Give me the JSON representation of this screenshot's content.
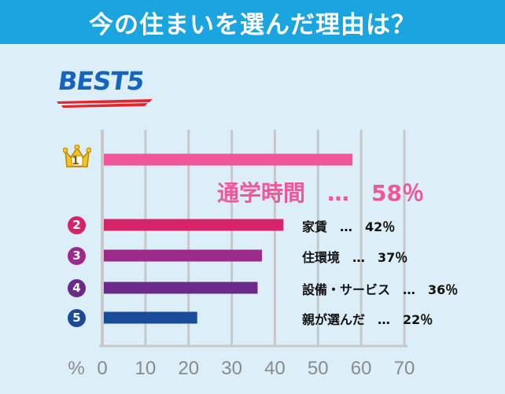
{
  "title": "今の住まいを選んだ理由は？",
  "badge": "BEST5",
  "colors": {
    "title_bar": "#1aa4e0",
    "background": "#dceef8",
    "rank1": "#f0569a",
    "rank2": "#d6246b",
    "rank3": "#9c2a8a",
    "rank4": "#6a2a8a",
    "rank5": "#1a4a9a"
  },
  "chart_data": {
    "type": "bar",
    "orientation": "horizontal",
    "categories": [
      "通学時間",
      "家賃",
      "住環境",
      "設備・サービス",
      "親が選んだ"
    ],
    "values": [
      58,
      42,
      37,
      36,
      22
    ],
    "ranks": [
      "1",
      "2",
      "3",
      "4",
      "5"
    ],
    "labels": [
      "通学時間　…　58％",
      "家賃　…　42％",
      "住環境　…　37％",
      "設備・サービス　…　36％",
      "親が選んだ　…　22％"
    ],
    "unit_label": "%",
    "xticks": [
      "0",
      "10",
      "20",
      "30",
      "40",
      "50",
      "60",
      "70"
    ],
    "xlim": [
      0,
      70
    ],
    "grid": true
  }
}
